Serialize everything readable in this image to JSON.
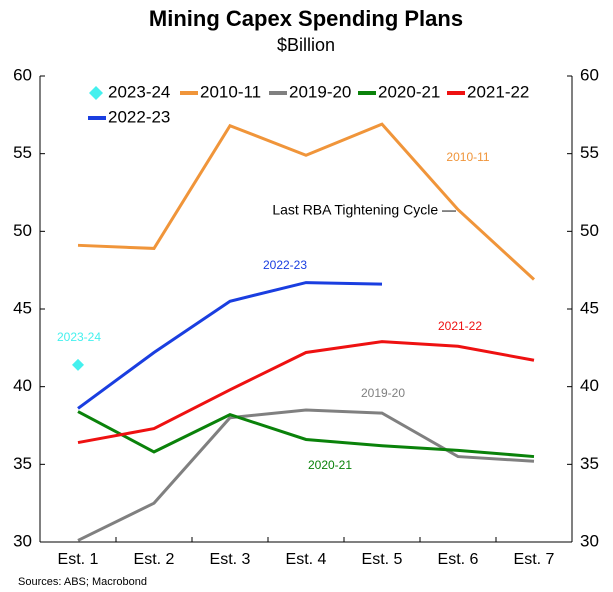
{
  "chart_data": {
    "type": "line",
    "title": "Mining Capex Spending Plans",
    "subtitle": "$Billion",
    "categories": [
      "Est. 1",
      "Est. 2",
      "Est. 3",
      "Est. 4",
      "Est. 5",
      "Est. 6",
      "Est. 7"
    ],
    "series": [
      {
        "name": "2023-24",
        "color": "#44f0ee",
        "marker": "diamond",
        "values": [
          41.4,
          null,
          null,
          null,
          null,
          null,
          null
        ]
      },
      {
        "name": "2010-11",
        "color": "#f0953a",
        "values": [
          49.1,
          48.9,
          56.8,
          54.9,
          56.9,
          51.4,
          46.9
        ]
      },
      {
        "name": "2019-20",
        "color": "#808080",
        "values": [
          30.1,
          32.5,
          38.0,
          38.5,
          38.3,
          35.5,
          35.2
        ]
      },
      {
        "name": "2020-21",
        "color": "#0a820a",
        "values": [
          38.4,
          35.8,
          38.2,
          36.6,
          36.2,
          35.9,
          35.5
        ]
      },
      {
        "name": "2021-22",
        "color": "#ee1111",
        "values": [
          36.4,
          37.3,
          39.8,
          42.2,
          42.9,
          42.6,
          41.7
        ]
      },
      {
        "name": "2022-23",
        "color": "#1a3ee0",
        "values": [
          38.6,
          42.2,
          45.5,
          46.7,
          46.6,
          null,
          null
        ]
      }
    ],
    "ylim": [
      30,
      60
    ],
    "yticks": [
      30,
      35,
      40,
      45,
      50,
      55,
      60
    ],
    "y2lim": [
      30,
      60
    ],
    "y2ticks": [
      30,
      35,
      40,
      45,
      50,
      55,
      60
    ],
    "legend": "upper left",
    "annotations": [
      {
        "text": "2023-24",
        "color": "#44f0ee"
      },
      {
        "text": "2010-11",
        "color": "#f0953a"
      },
      {
        "text": "2022-23",
        "color": "#1a3ee0"
      },
      {
        "text": "2021-22",
        "color": "#ee1111"
      },
      {
        "text": "2019-20",
        "color": "#808080"
      },
      {
        "text": "2020-21",
        "color": "#0a820a"
      },
      {
        "text": "Last RBA Tightening Cycle —",
        "color": "#000000"
      }
    ],
    "source": "Sources: ABS; Macrobond"
  }
}
